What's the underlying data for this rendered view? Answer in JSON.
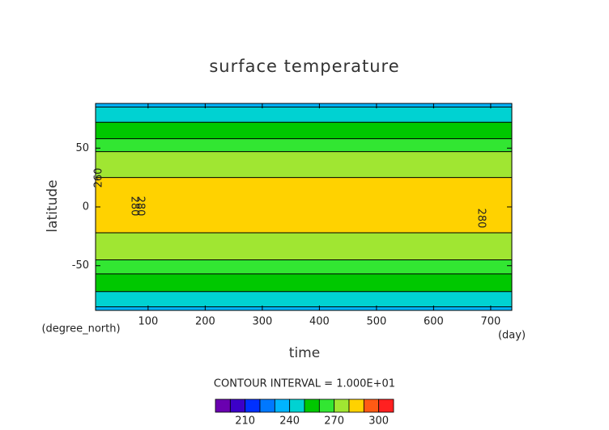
{
  "chart_data": {
    "type": "contour",
    "title": "surface temperature",
    "x_label": "time",
    "x_unit": "(day)",
    "y_label": "latitude",
    "y_unit": "(degree_north)",
    "xlim": [
      8,
      737
    ],
    "xticks": [
      100,
      200,
      300,
      400,
      500,
      600,
      700
    ],
    "ylim": [
      -88,
      88
    ],
    "yticks": [
      -50,
      0,
      50
    ],
    "contour_interval": "CONTOUR INTERVAL = 1.000E+01",
    "levels": [
      190,
      200,
      210,
      220,
      230,
      240,
      250,
      260,
      270,
      280,
      290,
      300,
      310
    ],
    "colors": [
      "#6a00b0",
      "#3c00c8",
      "#0030ff",
      "#0078ff",
      "#00b4ff",
      "#00d2d2",
      "#00c800",
      "#32e632",
      "#a0e632",
      "#ffd200",
      "#ff5a14",
      "#ff2020",
      "#ff9696"
    ],
    "colorbar_ticks": [
      210,
      240,
      270,
      300
    ],
    "contours": [
      {
        "level": 240,
        "lats": [
          -85,
          85
        ]
      },
      {
        "level": 250,
        "lats": [
          -72,
          72
        ]
      },
      {
        "level": 260,
        "lats": [
          -57,
          58
        ]
      },
      {
        "level": 270,
        "lats": [
          -45,
          47
        ]
      },
      {
        "level": 280,
        "lats": [
          -22,
          25
        ]
      }
    ],
    "contour_labels": [
      260,
      280,
      280,
      280
    ]
  }
}
